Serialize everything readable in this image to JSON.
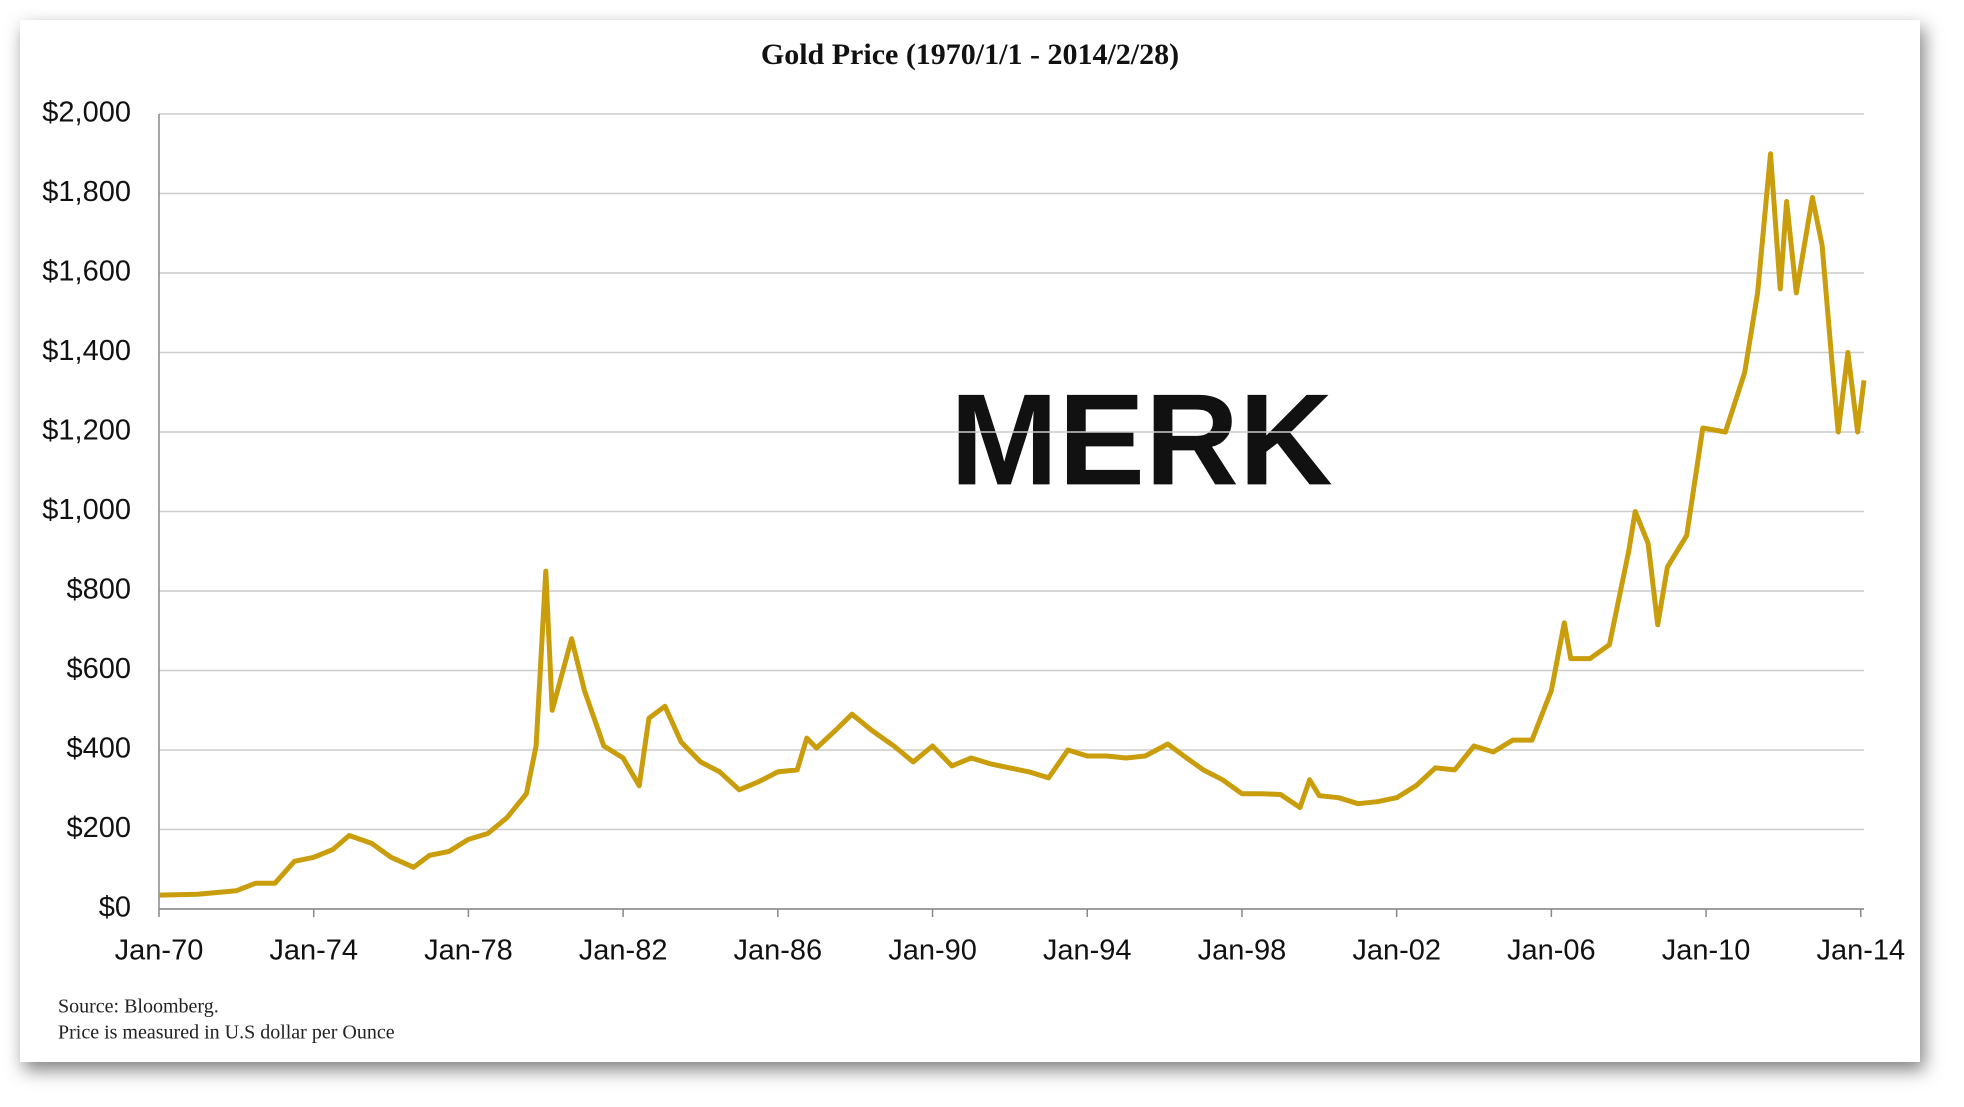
{
  "chart_data": {
    "type": "line",
    "title": "Gold Price (1970/1/1 - 2014/2/28)",
    "notes": [
      "Source: Bloomberg.",
      "Price is measured in U.S dollar per Ounce"
    ],
    "watermark": "MERK",
    "color": "#c99d0b",
    "grid": true,
    "x": [
      "1970-01",
      "1971-01",
      "1972-01",
      "1972-07",
      "1973-01",
      "1973-07",
      "1974-01",
      "1974-07",
      "1974-12",
      "1975-07",
      "1976-01",
      "1976-08",
      "1977-01",
      "1977-07",
      "1978-01",
      "1978-07",
      "1979-01",
      "1979-07",
      "1979-10",
      "1980-01",
      "1980-03",
      "1980-09",
      "1981-01",
      "1981-07",
      "1982-01",
      "1982-06",
      "1982-09",
      "1983-02",
      "1983-07",
      "1984-01",
      "1984-07",
      "1985-01",
      "1985-07",
      "1986-01",
      "1986-07",
      "1986-10",
      "1987-01",
      "1987-07",
      "1987-12",
      "1988-06",
      "1989-01",
      "1989-07",
      "1990-01",
      "1990-07",
      "1991-01",
      "1991-07",
      "1992-01",
      "1992-07",
      "1993-01",
      "1993-07",
      "1994-01",
      "1994-07",
      "1995-01",
      "1995-07",
      "1996-02",
      "1996-07",
      "1997-01",
      "1997-07",
      "1998-01",
      "1998-07",
      "1999-01",
      "1999-07",
      "1999-10",
      "2000-01",
      "2000-07",
      "2001-01",
      "2001-07",
      "2002-01",
      "2002-07",
      "2003-01",
      "2003-07",
      "2004-01",
      "2004-07",
      "2005-01",
      "2005-07",
      "2006-01",
      "2006-05",
      "2006-07",
      "2007-01",
      "2007-07",
      "2008-01",
      "2008-03",
      "2008-07",
      "2008-10",
      "2009-01",
      "2009-07",
      "2009-12",
      "2010-07",
      "2011-01",
      "2011-05",
      "2011-09",
      "2011-12",
      "2012-02",
      "2012-05",
      "2012-10",
      "2013-01",
      "2013-04",
      "2013-06",
      "2013-09",
      "2013-12",
      "2014-02"
    ],
    "values": [
      35,
      37,
      46,
      65,
      65,
      120,
      130,
      150,
      185,
      165,
      130,
      105,
      135,
      145,
      175,
      190,
      230,
      290,
      410,
      850,
      500,
      680,
      550,
      410,
      380,
      310,
      480,
      510,
      420,
      370,
      345,
      300,
      320,
      345,
      350,
      430,
      405,
      450,
      490,
      450,
      410,
      370,
      410,
      360,
      380,
      365,
      355,
      345,
      330,
      400,
      385,
      385,
      380,
      385,
      415,
      385,
      350,
      325,
      290,
      290,
      288,
      255,
      325,
      285,
      280,
      265,
      270,
      280,
      310,
      355,
      350,
      410,
      395,
      425,
      425,
      550,
      720,
      630,
      630,
      665,
      900,
      1000,
      920,
      715,
      860,
      940,
      1210,
      1200,
      1350,
      1550,
      1900,
      1560,
      1780,
      1550,
      1790,
      1670,
      1380,
      1200,
      1400,
      1200,
      1330
    ],
    "xlim": [
      "1970-01",
      "2014-02"
    ],
    "xticks": [
      {
        "value": "1970-01",
        "label": "Jan-70"
      },
      {
        "value": "1974-01",
        "label": "Jan-74"
      },
      {
        "value": "1978-01",
        "label": "Jan-78"
      },
      {
        "value": "1982-01",
        "label": "Jan-82"
      },
      {
        "value": "1986-01",
        "label": "Jan-86"
      },
      {
        "value": "1990-01",
        "label": "Jan-90"
      },
      {
        "value": "1994-01",
        "label": "Jan-94"
      },
      {
        "value": "1998-01",
        "label": "Jan-98"
      },
      {
        "value": "2002-01",
        "label": "Jan-02"
      },
      {
        "value": "2006-01",
        "label": "Jan-06"
      },
      {
        "value": "2010-01",
        "label": "Jan-10"
      },
      {
        "value": "2014-01",
        "label": "Jan-14"
      }
    ],
    "ylim": [
      0,
      2000
    ],
    "yticks": [
      {
        "value": 0,
        "label": "$0"
      },
      {
        "value": 200,
        "label": "$200"
      },
      {
        "value": 400,
        "label": "$400"
      },
      {
        "value": 600,
        "label": "$600"
      },
      {
        "value": 800,
        "label": "$800"
      },
      {
        "value": 1000,
        "label": "$1,000"
      },
      {
        "value": 1200,
        "label": "$1,200"
      },
      {
        "value": 1400,
        "label": "$1,400"
      },
      {
        "value": 1600,
        "label": "$1,600"
      },
      {
        "value": 1800,
        "label": "$1,800"
      },
      {
        "value": 2000,
        "label": "$2,000"
      }
    ]
  }
}
